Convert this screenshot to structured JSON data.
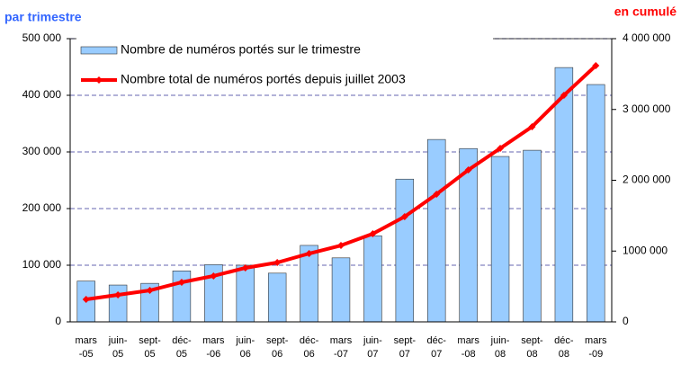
{
  "chart_data": {
    "type": "bar",
    "left_axis_label": "par trimestre",
    "right_axis_label": "en cumulé",
    "categories": [
      "mars-05",
      "juin-05",
      "sept-05",
      "déc-05",
      "mars-06",
      "juin-06",
      "sept-06",
      "déc-06",
      "mars-07",
      "juin-07",
      "sept-07",
      "déc-07",
      "mars-08",
      "juin-08",
      "sept-08",
      "déc-08",
      "mars-09"
    ],
    "series": [
      {
        "name": "Nombre de numéros portés sur le trimestre",
        "type": "bar",
        "color": "#99ccff",
        "values": [
          72000,
          65000,
          68000,
          90000,
          101000,
          100000,
          86000,
          135000,
          113000,
          152000,
          252000,
          322000,
          306000,
          292000,
          303000,
          449000,
          419000
        ]
      },
      {
        "name": "Nombre total de numéros portés depuis juillet 2003",
        "type": "line",
        "axis": "y2",
        "color": "#ff0000",
        "values": [
          317000,
          381000,
          444000,
          559000,
          648000,
          762000,
          838000,
          965000,
          1079000,
          1244000,
          1486000,
          1803000,
          2146000,
          2451000,
          2756000,
          3200000,
          3619000
        ]
      }
    ],
    "ylim": [
      0,
      500000
    ],
    "yticks": [
      0,
      {
        "value": 100000,
        "label": "100 000"
      },
      {
        "value": 200000,
        "label": "200 000"
      },
      {
        "value": 300000,
        "label": "300 000"
      },
      {
        "value": 400000,
        "label": "400 000"
      },
      {
        "value": 500000,
        "label": "500 000"
      }
    ],
    "y2lim": [
      0,
      4000000
    ],
    "y2ticks": [
      0,
      {
        "value": 1000000,
        "label": "1000 000"
      },
      {
        "value": 2000000,
        "label": "2 000 000"
      },
      {
        "value": 3000000,
        "label": "3 000 000"
      },
      {
        "value": 4000000,
        "label": "4 000 000"
      }
    ],
    "grid": true,
    "legend": "top-left"
  }
}
